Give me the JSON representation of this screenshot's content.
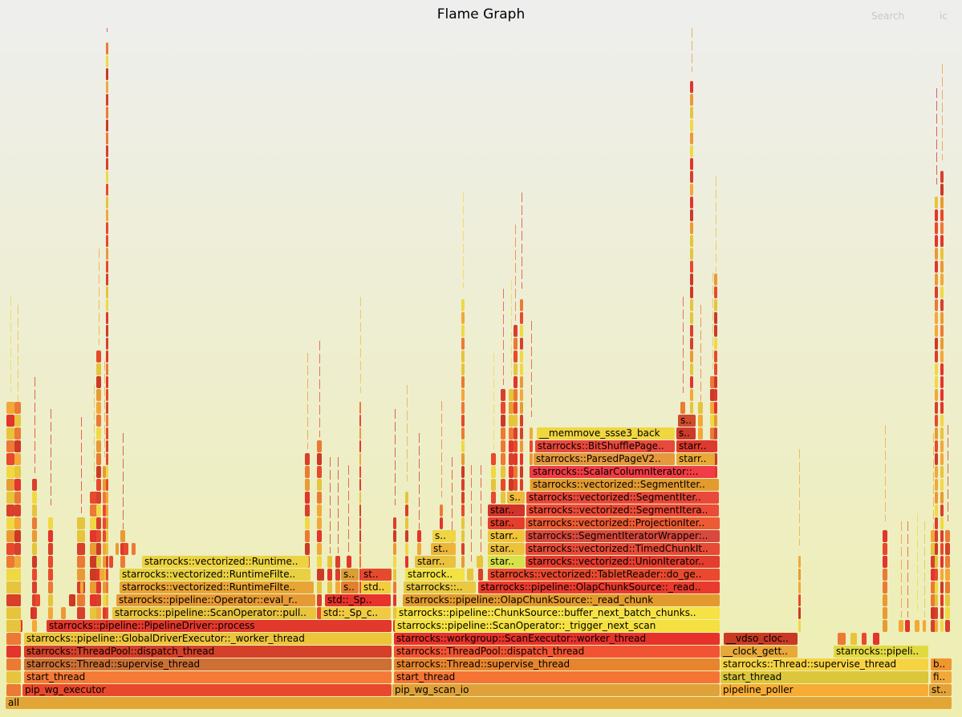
{
  "header": {
    "title": "Flame Graph",
    "search_label": "Search",
    "ic_label": "ic"
  },
  "frames": [
    {
      "label": "all",
      "color": "#e3a535"
    },
    {
      "label": "pip_wg_executor",
      "color": "#e8492c"
    },
    {
      "label": "pip_wg_scan_io",
      "color": "#dfa13a"
    },
    {
      "label": "pipeline_poller",
      "color": "#f6ac35"
    },
    {
      "label": "st..",
      "color": "#e3a13a"
    },
    {
      "label": "start_thread",
      "color": "#f57a36"
    },
    {
      "label": "start_thread",
      "color": "#f57434"
    },
    {
      "label": "start_thread",
      "color": "#dcc63a"
    },
    {
      "label": "fi..",
      "color": "#f2a839"
    },
    {
      "label": "starrocks::Thread::supervise_thread",
      "color": "#cc7035"
    },
    {
      "label": "starrocks::Thread::supervise_thread",
      "color": "#e7842e"
    },
    {
      "label": "starrocks::Thread::supervise_thread",
      "color": "#f5d342"
    },
    {
      "label": "b..",
      "color": "#ee9630"
    },
    {
      "label": "starrocks::ThreadPool::dispatch_thread",
      "color": "#d5402a"
    },
    {
      "label": "starrocks::ThreadPool::dispatch_thread",
      "color": "#f25433"
    },
    {
      "label": "__clock_gett..",
      "color": "#e8a93a"
    },
    {
      "label": "starrocks::pipeli..",
      "color": "#e2d940"
    },
    {
      "label": "starrocks::pipeline::GlobalDriverExecutor::_worker_thread",
      "color": "#edc53b"
    },
    {
      "label": "starrocks::workgroup::ScanExecutor::worker_thread",
      "color": "#e7322b"
    },
    {
      "label": "__vdso_cloc..",
      "color": "#c83a24"
    },
    {
      "label": "starrocks::pipeline::PipelineDriver::process",
      "color": "#e3382c"
    },
    {
      "label": "starrocks::pipeline::ScanOperator::_trigger_next_scan",
      "color": "#f4e040"
    },
    {
      "label": "starrocks::pipeline::Operator::eval_r..",
      "color": "#e69a35"
    },
    {
      "label": "std::_Sp..",
      "color": "#e7332c"
    },
    {
      "label": "starrocks::pipeline::OlapChunkSource::_read_chunk",
      "color": "#e29a2e"
    },
    {
      "label": "starrocks::pipeline::ScanOperator::pull..",
      "color": "#e9c43e"
    },
    {
      "label": "std::_Sp_c..",
      "color": "#f0ca40"
    },
    {
      "label": "starrocks::pipeline::ChunkSource::buffer_next_batch_chunks..",
      "color": "#f6e243"
    },
    {
      "label": "starrocks::vectorized::RuntimeFilte..",
      "color": "#e8a535"
    },
    {
      "label": "s..",
      "color": "#e3802f"
    },
    {
      "label": "std..",
      "color": "#f2cd3e"
    },
    {
      "label": "starrocks::..",
      "color": "#e8c941"
    },
    {
      "label": "starrocks::pipeline::OlapChunkSource::_read..",
      "color": "#e93a2e"
    },
    {
      "label": "starrocks::vectorized::RuntimeFilte..",
      "color": "#e8d140"
    },
    {
      "label": "s..",
      "color": "#d99e35"
    },
    {
      "label": "st..",
      "color": "#e64a2e"
    },
    {
      "label": "starrock..",
      "color": "#f2e243"
    },
    {
      "label": "starrocks::vectorized::TabletReader::do_ge..",
      "color": "#e9492e"
    },
    {
      "label": "starrocks::vectorized::Runtime..",
      "color": "#ecd342"
    },
    {
      "label": "starr..",
      "color": "#e9c23d"
    },
    {
      "label": "star..",
      "color": "#d7e14a"
    },
    {
      "label": "starrocks::vectorized::UnionIterator..",
      "color": "#e33d2f"
    },
    {
      "label": "st..",
      "color": "#ecb53a"
    },
    {
      "label": "star..",
      "color": "#eec13c"
    },
    {
      "label": "starrocks::vectorized::TimedChunkIt..",
      "color": "#e84a38"
    },
    {
      "label": "s..",
      "color": "#efd542"
    },
    {
      "label": "starr..",
      "color": "#f0c33a"
    },
    {
      "label": "starrocks::SegmentIteratorWrapper:..",
      "color": "#d8493d"
    },
    {
      "label": "star..",
      "color": "#e53e2c"
    },
    {
      "label": "starrocks::vectorized::ProjectionIter..",
      "color": "#ec5b33"
    },
    {
      "label": "star..",
      "color": "#d0342a"
    },
    {
      "label": "starrocks::vectorized::SegmentItera..",
      "color": "#eb4b38"
    },
    {
      "label": "s..",
      "color": "#eeb83c"
    },
    {
      "label": "starrocks::vectorized::SegmentIter..",
      "color": "#e8493a"
    },
    {
      "label": "starrocks::vectorized::SegmentIter..",
      "color": "#e39b2e"
    },
    {
      "label": "starrocks::ScalarColumnIterator::..",
      "color": "#f03c46"
    },
    {
      "label": "starrocks::ParsedPageV2..",
      "color": "#e5993c"
    },
    {
      "label": "starr..",
      "color": "#e8a935"
    },
    {
      "label": "starrocks::BitShufflePage..",
      "color": "#e9493c"
    },
    {
      "label": "starr..",
      "color": "#dc3a2e"
    },
    {
      "label": "__memmove_ssse3_back",
      "color": "#f0d640"
    },
    {
      "label": "s..",
      "color": "#cc3a2a"
    },
    {
      "label": "s..",
      "color": "#d04a2e"
    }
  ]
}
